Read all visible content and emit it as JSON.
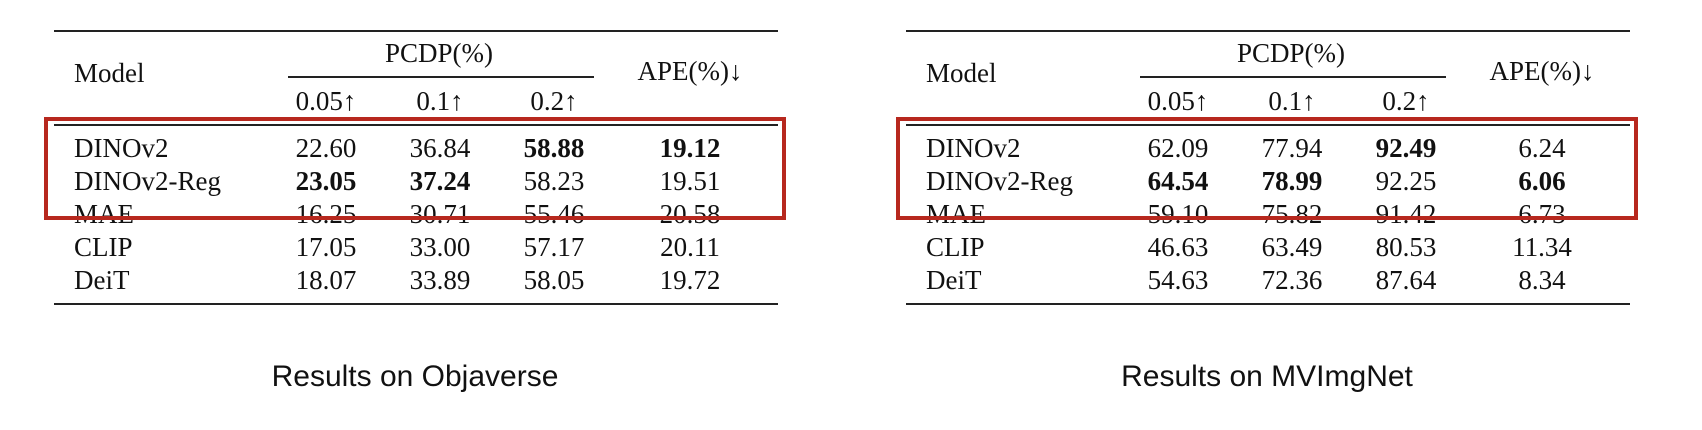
{
  "tables": [
    {
      "id": "objaverse",
      "caption": "Results on Objaverse",
      "headers": {
        "model": "Model",
        "group": "PCDP(%)",
        "sub": [
          "0.05↑",
          "0.1↑",
          "0.2↑"
        ],
        "ape": "APE(%)↓"
      },
      "rows": [
        {
          "model": "DINOv2",
          "values": [
            "22.60",
            "36.84",
            "58.88",
            "19.12"
          ],
          "bold": [
            false,
            false,
            true,
            true
          ]
        },
        {
          "model": "DINOv2-Reg",
          "values": [
            "23.05",
            "37.24",
            "58.23",
            "19.51"
          ],
          "bold": [
            true,
            true,
            false,
            false
          ]
        },
        {
          "model": "MAE",
          "values": [
            "16.25",
            "30.71",
            "55.46",
            "20.58"
          ],
          "bold": [
            false,
            false,
            false,
            false
          ]
        },
        {
          "model": "CLIP",
          "values": [
            "17.05",
            "33.00",
            "57.17",
            "20.11"
          ],
          "bold": [
            false,
            false,
            false,
            false
          ]
        },
        {
          "model": "DeiT",
          "values": [
            "18.07",
            "33.89",
            "58.05",
            "19.72"
          ],
          "bold": [
            false,
            false,
            false,
            false
          ]
        }
      ]
    },
    {
      "id": "mvimgnet",
      "caption": "Results on MVImgNet",
      "headers": {
        "model": "Model",
        "group": "PCDP(%)",
        "sub": [
          "0.05↑",
          "0.1↑",
          "0.2↑"
        ],
        "ape": "APE(%)↓"
      },
      "rows": [
        {
          "model": "DINOv2",
          "values": [
            "62.09",
            "77.94",
            "92.49",
            "6.24"
          ],
          "bold": [
            false,
            false,
            true,
            false
          ]
        },
        {
          "model": "DINOv2-Reg",
          "values": [
            "64.54",
            "78.99",
            "92.25",
            "6.06"
          ],
          "bold": [
            true,
            true,
            false,
            true
          ]
        },
        {
          "model": "MAE",
          "values": [
            "59.10",
            "75.82",
            "91.42",
            "6.73"
          ],
          "bold": [
            false,
            false,
            false,
            false
          ]
        },
        {
          "model": "CLIP",
          "values": [
            "46.63",
            "63.49",
            "80.53",
            "11.34"
          ],
          "bold": [
            false,
            false,
            false,
            false
          ]
        },
        {
          "model": "DeiT",
          "values": [
            "54.63",
            "72.36",
            "87.64",
            "8.34"
          ],
          "bold": [
            false,
            false,
            false,
            false
          ]
        }
      ]
    }
  ],
  "colors": {
    "highlight": "#b7281e",
    "rule": "#222222",
    "text": "#111111"
  }
}
